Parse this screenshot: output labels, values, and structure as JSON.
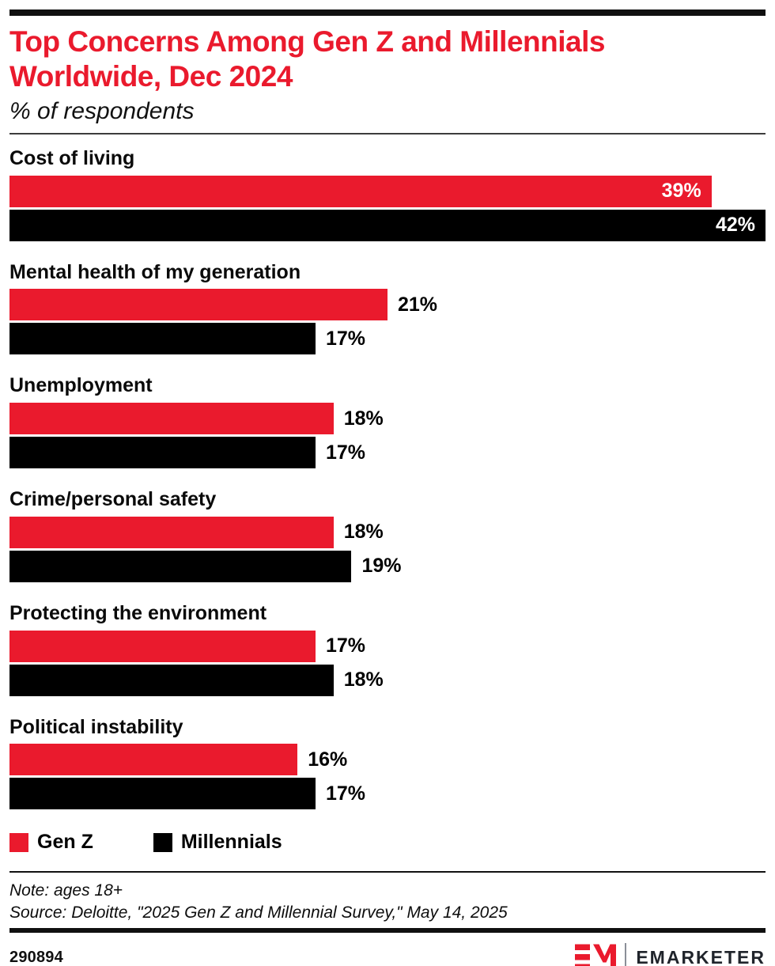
{
  "header": {
    "title": "Top Concerns Among Gen Z and Millennials Worldwide, Dec 2024",
    "subtitle": "% of respondents"
  },
  "chart_data": {
    "type": "bar",
    "orientation": "horizontal",
    "title": "Top Concerns Among Gen Z and Millennials Worldwide, Dec 2024",
    "subtitle": "% of respondents",
    "categories": [
      "Cost of living",
      "Mental health of my generation",
      "Unemployment",
      "Crime/personal safety",
      "Protecting the environment",
      "Political instability"
    ],
    "series": [
      {
        "name": "Gen Z",
        "color": "#EA1A2D",
        "values": [
          39,
          21,
          18,
          18,
          17,
          16
        ]
      },
      {
        "name": "Millennials",
        "color": "#000000",
        "values": [
          42,
          17,
          17,
          19,
          18,
          17
        ]
      }
    ],
    "value_suffix": "%",
    "xlim": [
      0,
      42
    ],
    "grid": false,
    "legend_position": "bottom",
    "value_labels_shown": true
  },
  "legend": {
    "items": [
      {
        "label": "Gen Z",
        "color": "#EA1A2D"
      },
      {
        "label": "Millennials",
        "color": "#000000"
      }
    ]
  },
  "notes": {
    "note": "Note: ages 18+",
    "source": "Source: Deloitte, \"2025 Gen Z and Millennial Survey,\" May 14, 2025"
  },
  "footer": {
    "chart_id": "290894",
    "brand": "EMARKETER"
  },
  "colors": {
    "accent_red": "#EA1A2D",
    "bar_black": "#000000"
  }
}
